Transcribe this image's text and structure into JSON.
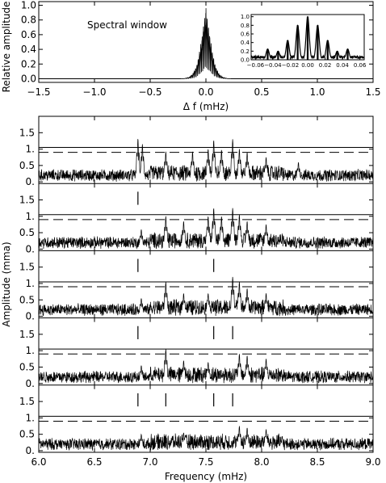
{
  "chart_data": [
    {
      "id": "spectral_window",
      "type": "line",
      "annotation": "Spectral window",
      "xlabel": "Δ f (mHz)",
      "ylabel": "Relative amplitude",
      "xlim": [
        -1.5,
        1.5
      ],
      "ylim": [
        -0.05,
        1.05
      ],
      "xticks": [
        "−1.5",
        "−1.0",
        "−0.5",
        "0.0",
        "0.5",
        "1.0",
        "1.5"
      ],
      "xtick_values": [
        -1.5,
        -1.0,
        -0.5,
        0.0,
        0.5,
        1.0,
        1.5
      ],
      "yticks": [
        "0.0",
        "0.2",
        "0.4",
        "0.6",
        "0.8",
        "1.0"
      ],
      "ytick_values": [
        0.0,
        0.2,
        0.4,
        0.6,
        0.8,
        1.0
      ],
      "envelope": {
        "x": [
          -1.5,
          -0.2,
          -0.15,
          -0.12,
          -0.1,
          -0.08,
          -0.06,
          -0.04,
          -0.02,
          0.0,
          0.02,
          0.04,
          0.06,
          0.08,
          0.1,
          0.12,
          0.15,
          0.2,
          1.5
        ],
        "y": [
          0.0,
          0.0,
          0.02,
          0.06,
          0.12,
          0.2,
          0.35,
          0.55,
          0.75,
          1.0,
          0.75,
          0.55,
          0.35,
          0.2,
          0.12,
          0.06,
          0.02,
          0.0,
          0.0
        ]
      },
      "inset": {
        "type": "line",
        "xlim": [
          -0.065,
          0.065
        ],
        "ylim": [
          0.0,
          1.05
        ],
        "xticks": [
          "−0.06",
          "−0.04",
          "−0.02",
          "0.00",
          "0.02",
          "0.04",
          "0.06"
        ],
        "xtick_values": [
          -0.06,
          -0.04,
          -0.02,
          0.0,
          0.02,
          0.04,
          0.06
        ],
        "yticks": [
          "0.0",
          "0.2",
          "0.4",
          "0.6",
          "0.8",
          "1.0"
        ],
        "ytick_values": [
          0.0,
          0.2,
          0.4,
          0.6,
          0.8,
          1.0
        ],
        "peaks": [
          {
            "x": -0.046,
            "y": 0.25
          },
          {
            "x": -0.034,
            "y": 0.2
          },
          {
            "x": -0.023,
            "y": 0.45
          },
          {
            "x": -0.0115,
            "y": 0.8
          },
          {
            "x": 0.0,
            "y": 1.0
          },
          {
            "x": 0.0115,
            "y": 0.8
          },
          {
            "x": 0.023,
            "y": 0.45
          },
          {
            "x": 0.034,
            "y": 0.2
          },
          {
            "x": 0.046,
            "y": 0.25
          }
        ],
        "floor": 0.06
      }
    },
    {
      "id": "amplitude_spectra",
      "type": "line",
      "xlabel": "Frequency (mHz)",
      "ylabel": "Amplitude (mma)",
      "xlim": [
        6.0,
        9.0
      ],
      "ylim": [
        -0.05,
        2.0
      ],
      "xticks": [
        "6.0",
        "6.5",
        "7.0",
        "7.5",
        "8.0",
        "8.5",
        "9.0"
      ],
      "xtick_values": [
        6.0,
        6.5,
        7.0,
        7.5,
        8.0,
        8.5,
        9.0
      ],
      "yticks": [
        "0.",
        "0.5",
        "1.",
        "1.5"
      ],
      "ytick_values": [
        0.0,
        0.5,
        1.0,
        1.5
      ],
      "panels": [
        {
          "solid_line": 1.05,
          "dashed_line": 0.9,
          "prewhitened_markers": [],
          "peaks": [
            {
              "x": 6.89,
              "y": 1.32
            },
            {
              "x": 6.93,
              "y": 1.15
            },
            {
              "x": 7.14,
              "y": 0.92
            },
            {
              "x": 7.38,
              "y": 0.92
            },
            {
              "x": 7.52,
              "y": 1.0
            },
            {
              "x": 7.57,
              "y": 1.27
            },
            {
              "x": 7.64,
              "y": 0.98
            },
            {
              "x": 7.74,
              "y": 1.3
            },
            {
              "x": 7.8,
              "y": 1.0
            },
            {
              "x": 7.87,
              "y": 0.9
            },
            {
              "x": 8.04,
              "y": 0.75
            },
            {
              "x": 8.33,
              "y": 0.6
            }
          ]
        },
        {
          "solid_line": 1.05,
          "dashed_line": 0.9,
          "prewhitened_markers": [
            6.89
          ],
          "peaks": [
            {
              "x": 7.14,
              "y": 1.0
            },
            {
              "x": 7.3,
              "y": 0.85
            },
            {
              "x": 7.52,
              "y": 1.0
            },
            {
              "x": 7.57,
              "y": 1.25
            },
            {
              "x": 7.64,
              "y": 1.0
            },
            {
              "x": 7.74,
              "y": 1.25
            },
            {
              "x": 7.8,
              "y": 1.05
            },
            {
              "x": 7.87,
              "y": 0.85
            },
            {
              "x": 8.04,
              "y": 0.75
            },
            {
              "x": 6.92,
              "y": 0.6
            }
          ]
        },
        {
          "solid_line": 1.05,
          "dashed_line": 0.9,
          "prewhitened_markers": [
            6.89,
            7.57
          ],
          "peaks": [
            {
              "x": 7.14,
              "y": 1.05
            },
            {
              "x": 7.3,
              "y": 0.7
            },
            {
              "x": 7.52,
              "y": 0.7
            },
            {
              "x": 7.74,
              "y": 1.2
            },
            {
              "x": 7.8,
              "y": 1.05
            },
            {
              "x": 7.87,
              "y": 0.85
            },
            {
              "x": 8.04,
              "y": 0.7
            },
            {
              "x": 6.92,
              "y": 0.55
            }
          ]
        },
        {
          "solid_line": 1.05,
          "dashed_line": 0.9,
          "prewhitened_markers": [
            6.89,
            7.57,
            7.74
          ],
          "peaks": [
            {
              "x": 7.14,
              "y": 1.05
            },
            {
              "x": 7.3,
              "y": 0.7
            },
            {
              "x": 7.52,
              "y": 0.65
            },
            {
              "x": 7.8,
              "y": 0.9
            },
            {
              "x": 7.87,
              "y": 0.85
            },
            {
              "x": 8.04,
              "y": 0.75
            },
            {
              "x": 6.92,
              "y": 0.55
            }
          ]
        },
        {
          "solid_line": 1.05,
          "dashed_line": 0.9,
          "prewhitened_markers": [
            6.89,
            7.14,
            7.57,
            7.74
          ],
          "peaks": [
            {
              "x": 7.8,
              "y": 0.75
            },
            {
              "x": 7.87,
              "y": 0.7
            },
            {
              "x": 8.04,
              "y": 0.65
            },
            {
              "x": 7.3,
              "y": 0.55
            },
            {
              "x": 6.92,
              "y": 0.5
            }
          ]
        }
      ]
    }
  ]
}
